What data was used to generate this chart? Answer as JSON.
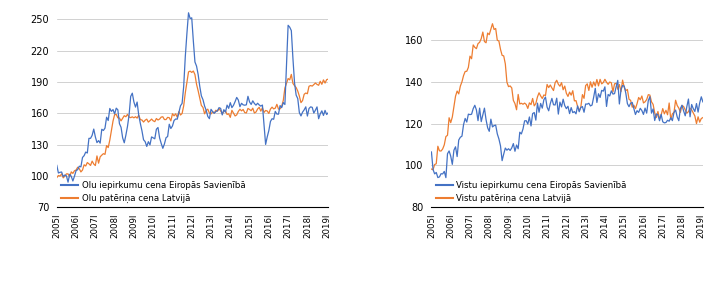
{
  "blue_color": "#4472C4",
  "orange_color": "#ED7D31",
  "background": "#FFFFFF",
  "grid_color": "#BFBFBF",
  "left_legend": [
    "Olu iepirkumu cena Eiropās Savienībā",
    "Olu patēriņa cena Latvijā"
  ],
  "right_legend": [
    "Vistu iepirkumu cena Eiropās Savienībā",
    "Vistu patēriņa cena Latvijā"
  ],
  "left_ylim": [
    70,
    260
  ],
  "right_ylim": [
    80,
    175
  ],
  "left_yticks": [
    70,
    100,
    130,
    160,
    190,
    220,
    250
  ],
  "right_yticks": [
    80,
    100,
    120,
    140,
    160
  ],
  "years": [
    "2005I",
    "2006I",
    "2007I",
    "2008I",
    "2009I",
    "2010I",
    "2011I",
    "2012I",
    "2013I",
    "2014I",
    "2015I",
    "2016I",
    "2017I",
    "2018I",
    "2019I"
  ],
  "n_months": 170
}
